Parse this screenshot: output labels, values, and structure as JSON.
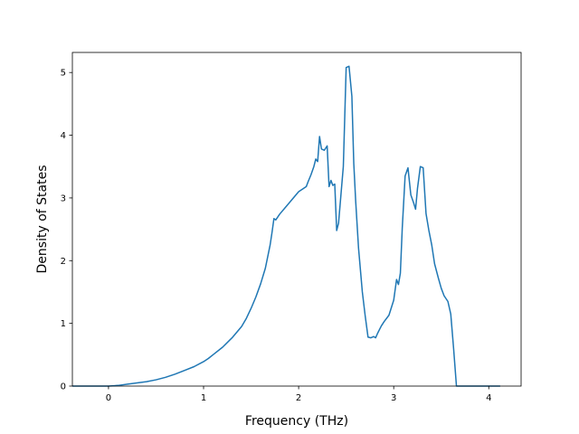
{
  "chart_data": {
    "type": "line",
    "title": "",
    "xlabel": "Frequency (THz)",
    "ylabel": "Density of States",
    "xlim": [
      -0.38,
      4.34
    ],
    "ylim": [
      0,
      5.32
    ],
    "x_ticks": [
      0,
      1,
      2,
      3,
      4
    ],
    "y_ticks": [
      0,
      1,
      2,
      3,
      4,
      5
    ],
    "x_tick_labels": [
      "0",
      "1",
      "2",
      "3",
      "4"
    ],
    "y_tick_labels": [
      "0",
      "1",
      "2",
      "3",
      "4",
      "5"
    ],
    "grid": false,
    "legend": "none",
    "series": [
      {
        "color": "#1f77b4",
        "x": [
          -0.38,
          0.0,
          0.1,
          0.2,
          0.3,
          0.4,
          0.5,
          0.6,
          0.7,
          0.8,
          0.9,
          1.0,
          1.05,
          1.1,
          1.2,
          1.3,
          1.4,
          1.45,
          1.5,
          1.55,
          1.6,
          1.65,
          1.7,
          1.72,
          1.74,
          1.76,
          1.8,
          1.9,
          2.0,
          2.05,
          2.08,
          2.1,
          2.13,
          2.16,
          2.18,
          2.2,
          2.22,
          2.24,
          2.27,
          2.3,
          2.32,
          2.34,
          2.36,
          2.38,
          2.4,
          2.42,
          2.44,
          2.47,
          2.5,
          2.53,
          2.56,
          2.58,
          2.6,
          2.63,
          2.67,
          2.7,
          2.73,
          2.76,
          2.79,
          2.81,
          2.83,
          2.85,
          2.87,
          2.9,
          2.95,
          3.0,
          3.03,
          3.05,
          3.07,
          3.09,
          3.12,
          3.15,
          3.18,
          3.21,
          3.23,
          3.25,
          3.28,
          3.31,
          3.34,
          3.37,
          3.4,
          3.43,
          3.47,
          3.5,
          3.53,
          3.57,
          3.6,
          3.63,
          3.66,
          3.69,
          3.71,
          3.72,
          3.74,
          3.76,
          3.8,
          4.12
        ],
        "y": [
          0.0,
          0.0,
          0.01,
          0.03,
          0.05,
          0.07,
          0.1,
          0.14,
          0.19,
          0.25,
          0.31,
          0.39,
          0.44,
          0.5,
          0.62,
          0.77,
          0.95,
          1.08,
          1.24,
          1.42,
          1.63,
          1.88,
          2.25,
          2.45,
          2.67,
          2.65,
          2.74,
          2.92,
          3.1,
          3.15,
          3.18,
          3.26,
          3.37,
          3.5,
          3.62,
          3.58,
          3.98,
          3.78,
          3.76,
          3.83,
          3.18,
          3.28,
          3.2,
          3.22,
          2.48,
          2.6,
          2.96,
          3.5,
          5.08,
          5.1,
          4.62,
          3.55,
          2.95,
          2.2,
          1.5,
          1.12,
          0.78,
          0.77,
          0.79,
          0.77,
          0.84,
          0.9,
          0.96,
          1.03,
          1.13,
          1.37,
          1.7,
          1.62,
          1.8,
          2.52,
          3.35,
          3.48,
          3.05,
          2.92,
          2.82,
          3.15,
          3.5,
          3.48,
          2.75,
          2.48,
          2.25,
          1.95,
          1.72,
          1.56,
          1.44,
          1.35,
          1.15,
          0.6,
          0.0,
          0.0,
          0.0,
          0.0,
          0.0,
          0.0,
          0.0,
          0.0
        ]
      }
    ]
  }
}
